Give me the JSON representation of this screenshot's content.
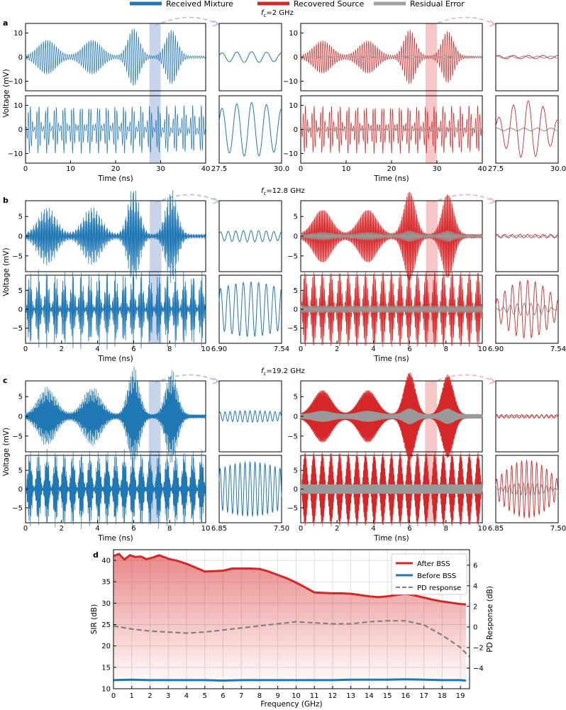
{
  "top_legend": [
    {
      "label": "Received Mixture",
      "color": "#1f77b4"
    },
    {
      "label": "Recovered Source",
      "color": "#d62728"
    },
    {
      "label": "Residual Error",
      "color": "#a0a0a0"
    }
  ],
  "colors": {
    "blue": "#1f77b4",
    "red": "#d62728",
    "gray": "#999999",
    "blue_band": "#b9c9e3",
    "red_band": "#f6bcbc"
  },
  "chart_data": [
    {
      "panel": "a",
      "label": "a",
      "fc_prefix": "f",
      "fc_sub": "c",
      "fc_value": "=2 GHz",
      "type": "line",
      "ylabel": "Voltage (mV)",
      "xlabel": "Time (ns)",
      "xlim": [
        0,
        40
      ],
      "ylim": [
        -14,
        14
      ],
      "xticks": [
        "0",
        "10",
        "20",
        "30",
        "40"
      ],
      "yticks": [
        "-10",
        "0",
        "10"
      ],
      "zoom_xlim": [
        27.5,
        30.0
      ],
      "zoom_xticks": [
        "27.5",
        "30.0"
      ],
      "highlight": [
        27.5,
        30.0
      ],
      "carrier_cycles": 4.2,
      "zoom_carrier_cycles": 4.2,
      "residual_amp": 0.6
    },
    {
      "panel": "b",
      "label": "b",
      "fc_prefix": "f",
      "fc_sub": "c",
      "fc_value": "=12.8 GHz",
      "type": "line",
      "ylabel": "Voltage (mV)",
      "xlabel": "Time (ns)",
      "xlim": [
        0,
        10
      ],
      "ylim": [
        -9,
        9
      ],
      "xticks": [
        "0",
        "2",
        "4",
        "6",
        "8",
        "10"
      ],
      "yticks": [
        "-5",
        "0",
        "5"
      ],
      "zoom_xlim": [
        6.9,
        7.54
      ],
      "zoom_xticks": [
        "6.90",
        "7.54"
      ],
      "highlight": [
        6.9,
        7.54
      ],
      "carrier_cycles": 8.2,
      "zoom_carrier_cycles": 8.2,
      "residual_amp": 1.1
    },
    {
      "panel": "c",
      "label": "c",
      "fc_prefix": "f",
      "fc_sub": "c",
      "fc_value": "=19.2 GHz",
      "type": "line",
      "ylabel": "Voltage (mV)",
      "xlabel": "Time (ns)",
      "xlim": [
        0,
        10
      ],
      "ylim": [
        -9,
        9
      ],
      "xticks": [
        "0",
        "2",
        "4",
        "6",
        "8",
        "10"
      ],
      "yticks": [
        "-5",
        "0",
        "5"
      ],
      "zoom_xlim": [
        6.85,
        7.5
      ],
      "zoom_xticks": [
        "6.85",
        "7.50"
      ],
      "highlight": [
        6.85,
        7.5
      ],
      "carrier_cycles": 12.5,
      "zoom_carrier_cycles": 12.5,
      "residual_amp": 1.6
    },
    {
      "panel": "d",
      "label": "d",
      "type": "line",
      "xlabel": "Frequency (GHz)",
      "ylabel": "SIR (dB)",
      "y2label": "PD Response (dB)",
      "xlim": [
        0,
        19.5
      ],
      "ylim": [
        10,
        42.5
      ],
      "y2lim": [
        -6,
        7.5
      ],
      "xticks": [
        "0",
        "1",
        "2",
        "3",
        "4",
        "5",
        "6",
        "7",
        "8",
        "9",
        "10",
        "11",
        "12",
        "13",
        "14",
        "15",
        "16",
        "17",
        "18",
        "19"
      ],
      "yticks": [
        "10",
        "15",
        "20",
        "25",
        "30",
        "35",
        "40"
      ],
      "y2ticks": [
        "-4",
        "-2",
        "0",
        "2",
        "4",
        "6"
      ],
      "series": [
        {
          "name": "After BSS",
          "color": "#d62728",
          "axis": "left",
          "x": [
            0,
            0.3,
            0.6,
            0.9,
            1.2,
            1.5,
            1.8,
            2.1,
            2.5,
            3,
            3.5,
            4,
            4.5,
            5,
            5.5,
            6,
            6.5,
            7,
            7.5,
            8,
            8.5,
            9,
            9.5,
            10,
            10.5,
            11,
            11.5,
            12,
            12.5,
            13,
            13.5,
            14,
            14.5,
            15,
            15.5,
            16,
            16.5,
            17,
            17.5,
            18,
            18.5,
            19,
            19.3
          ],
          "values": [
            41.0,
            41.5,
            40.2,
            41.2,
            40.8,
            40.9,
            40.3,
            40.6,
            41.2,
            40.4,
            39.9,
            39.2,
            38.3,
            37.4,
            37.5,
            37.6,
            38.1,
            38.1,
            38.1,
            38.0,
            37.4,
            36.6,
            35.8,
            34.8,
            33.7,
            32.5,
            32.4,
            32.3,
            32.3,
            32.2,
            31.9,
            31.6,
            31.4,
            31.6,
            31.9,
            32.2,
            31.8,
            31.3,
            30.8,
            30.4,
            30.1,
            29.8,
            29.7
          ]
        },
        {
          "name": "Before BSS",
          "color": "#1f77b4",
          "axis": "left",
          "x": [
            0,
            1,
            2,
            3,
            4,
            5,
            6,
            7,
            8,
            9,
            10,
            11,
            12,
            13,
            14,
            15,
            16,
            17,
            18,
            19,
            19.3
          ],
          "values": [
            12.0,
            12.1,
            12.0,
            12.0,
            12.0,
            12.0,
            11.9,
            12.0,
            12.0,
            12.0,
            12.0,
            12.0,
            12.0,
            12.1,
            12.1,
            12.1,
            12.2,
            12.1,
            12.0,
            12.0,
            11.9
          ]
        },
        {
          "name": "PD response",
          "color": "#808080",
          "axis": "right",
          "dashed": true,
          "x": [
            0,
            1,
            2,
            3,
            4,
            5,
            6,
            7,
            8,
            9,
            10,
            11,
            12,
            13,
            14,
            15,
            16,
            17,
            18,
            19,
            19.5
          ],
          "values": [
            0.1,
            -0.2,
            -0.4,
            -0.5,
            -0.6,
            -0.5,
            -0.3,
            -0.1,
            0.1,
            0.3,
            0.5,
            0.4,
            0.3,
            0.3,
            0.5,
            0.6,
            0.6,
            0.2,
            -0.8,
            -2.0,
            -2.9
          ]
        }
      ]
    }
  ]
}
